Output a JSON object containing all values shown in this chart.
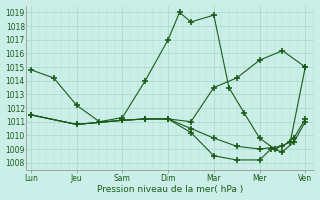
{
  "xlabel": "Pression niveau de la mer( hPa )",
  "ylim": [
    1007.5,
    1019.5
  ],
  "yticks": [
    1008,
    1009,
    1010,
    1011,
    1012,
    1013,
    1014,
    1015,
    1016,
    1017,
    1018,
    1019
  ],
  "xtick_labels": [
    "Lun",
    "Jeu",
    "Sam",
    "Dim",
    "Mar",
    "Mer",
    "Ven"
  ],
  "xtick_positions": [
    0,
    1,
    2,
    3,
    4,
    5,
    6
  ],
  "xlim": [
    -0.1,
    6.2
  ],
  "background_color": "#cceee8",
  "grid_color": "#aaddcc",
  "line_color": "#1a5c1a",
  "lines": [
    {
      "x": [
        0,
        0.5,
        1,
        1.5,
        2,
        2.5,
        3,
        3.25,
        3.5,
        4,
        4.33,
        4.67,
        5,
        5.33,
        5.67,
        6
      ],
      "y": [
        1014.8,
        1014.2,
        1012.2,
        1011.0,
        1011.3,
        1014.0,
        1017.0,
        1019.0,
        1018.3,
        1018.8,
        1013.5,
        1011.6,
        1009.8,
        1009.0,
        1009.5,
        1015.0
      ]
    },
    {
      "x": [
        0,
        1,
        2,
        2.5,
        3,
        3.5,
        4,
        4.5,
        5,
        5.5,
        6
      ],
      "y": [
        1011.5,
        1010.8,
        1011.1,
        1011.2,
        1011.2,
        1011.0,
        1013.5,
        1014.2,
        1015.5,
        1016.2,
        1015.0
      ]
    },
    {
      "x": [
        0,
        1,
        2,
        2.5,
        3,
        3.5,
        4,
        4.5,
        5,
        5.5,
        5.75,
        6
      ],
      "y": [
        1011.5,
        1010.8,
        1011.1,
        1011.2,
        1011.2,
        1010.5,
        1009.8,
        1009.2,
        1009.0,
        1009.2,
        1009.8,
        1011.2
      ]
    },
    {
      "x": [
        0,
        1,
        2,
        2.5,
        3,
        3.5,
        4,
        4.5,
        5,
        5.25,
        5.5,
        5.75,
        6
      ],
      "y": [
        1011.5,
        1010.8,
        1011.1,
        1011.2,
        1011.2,
        1010.2,
        1008.5,
        1008.2,
        1008.2,
        1009.0,
        1008.8,
        1009.5,
        1011.0
      ]
    }
  ]
}
